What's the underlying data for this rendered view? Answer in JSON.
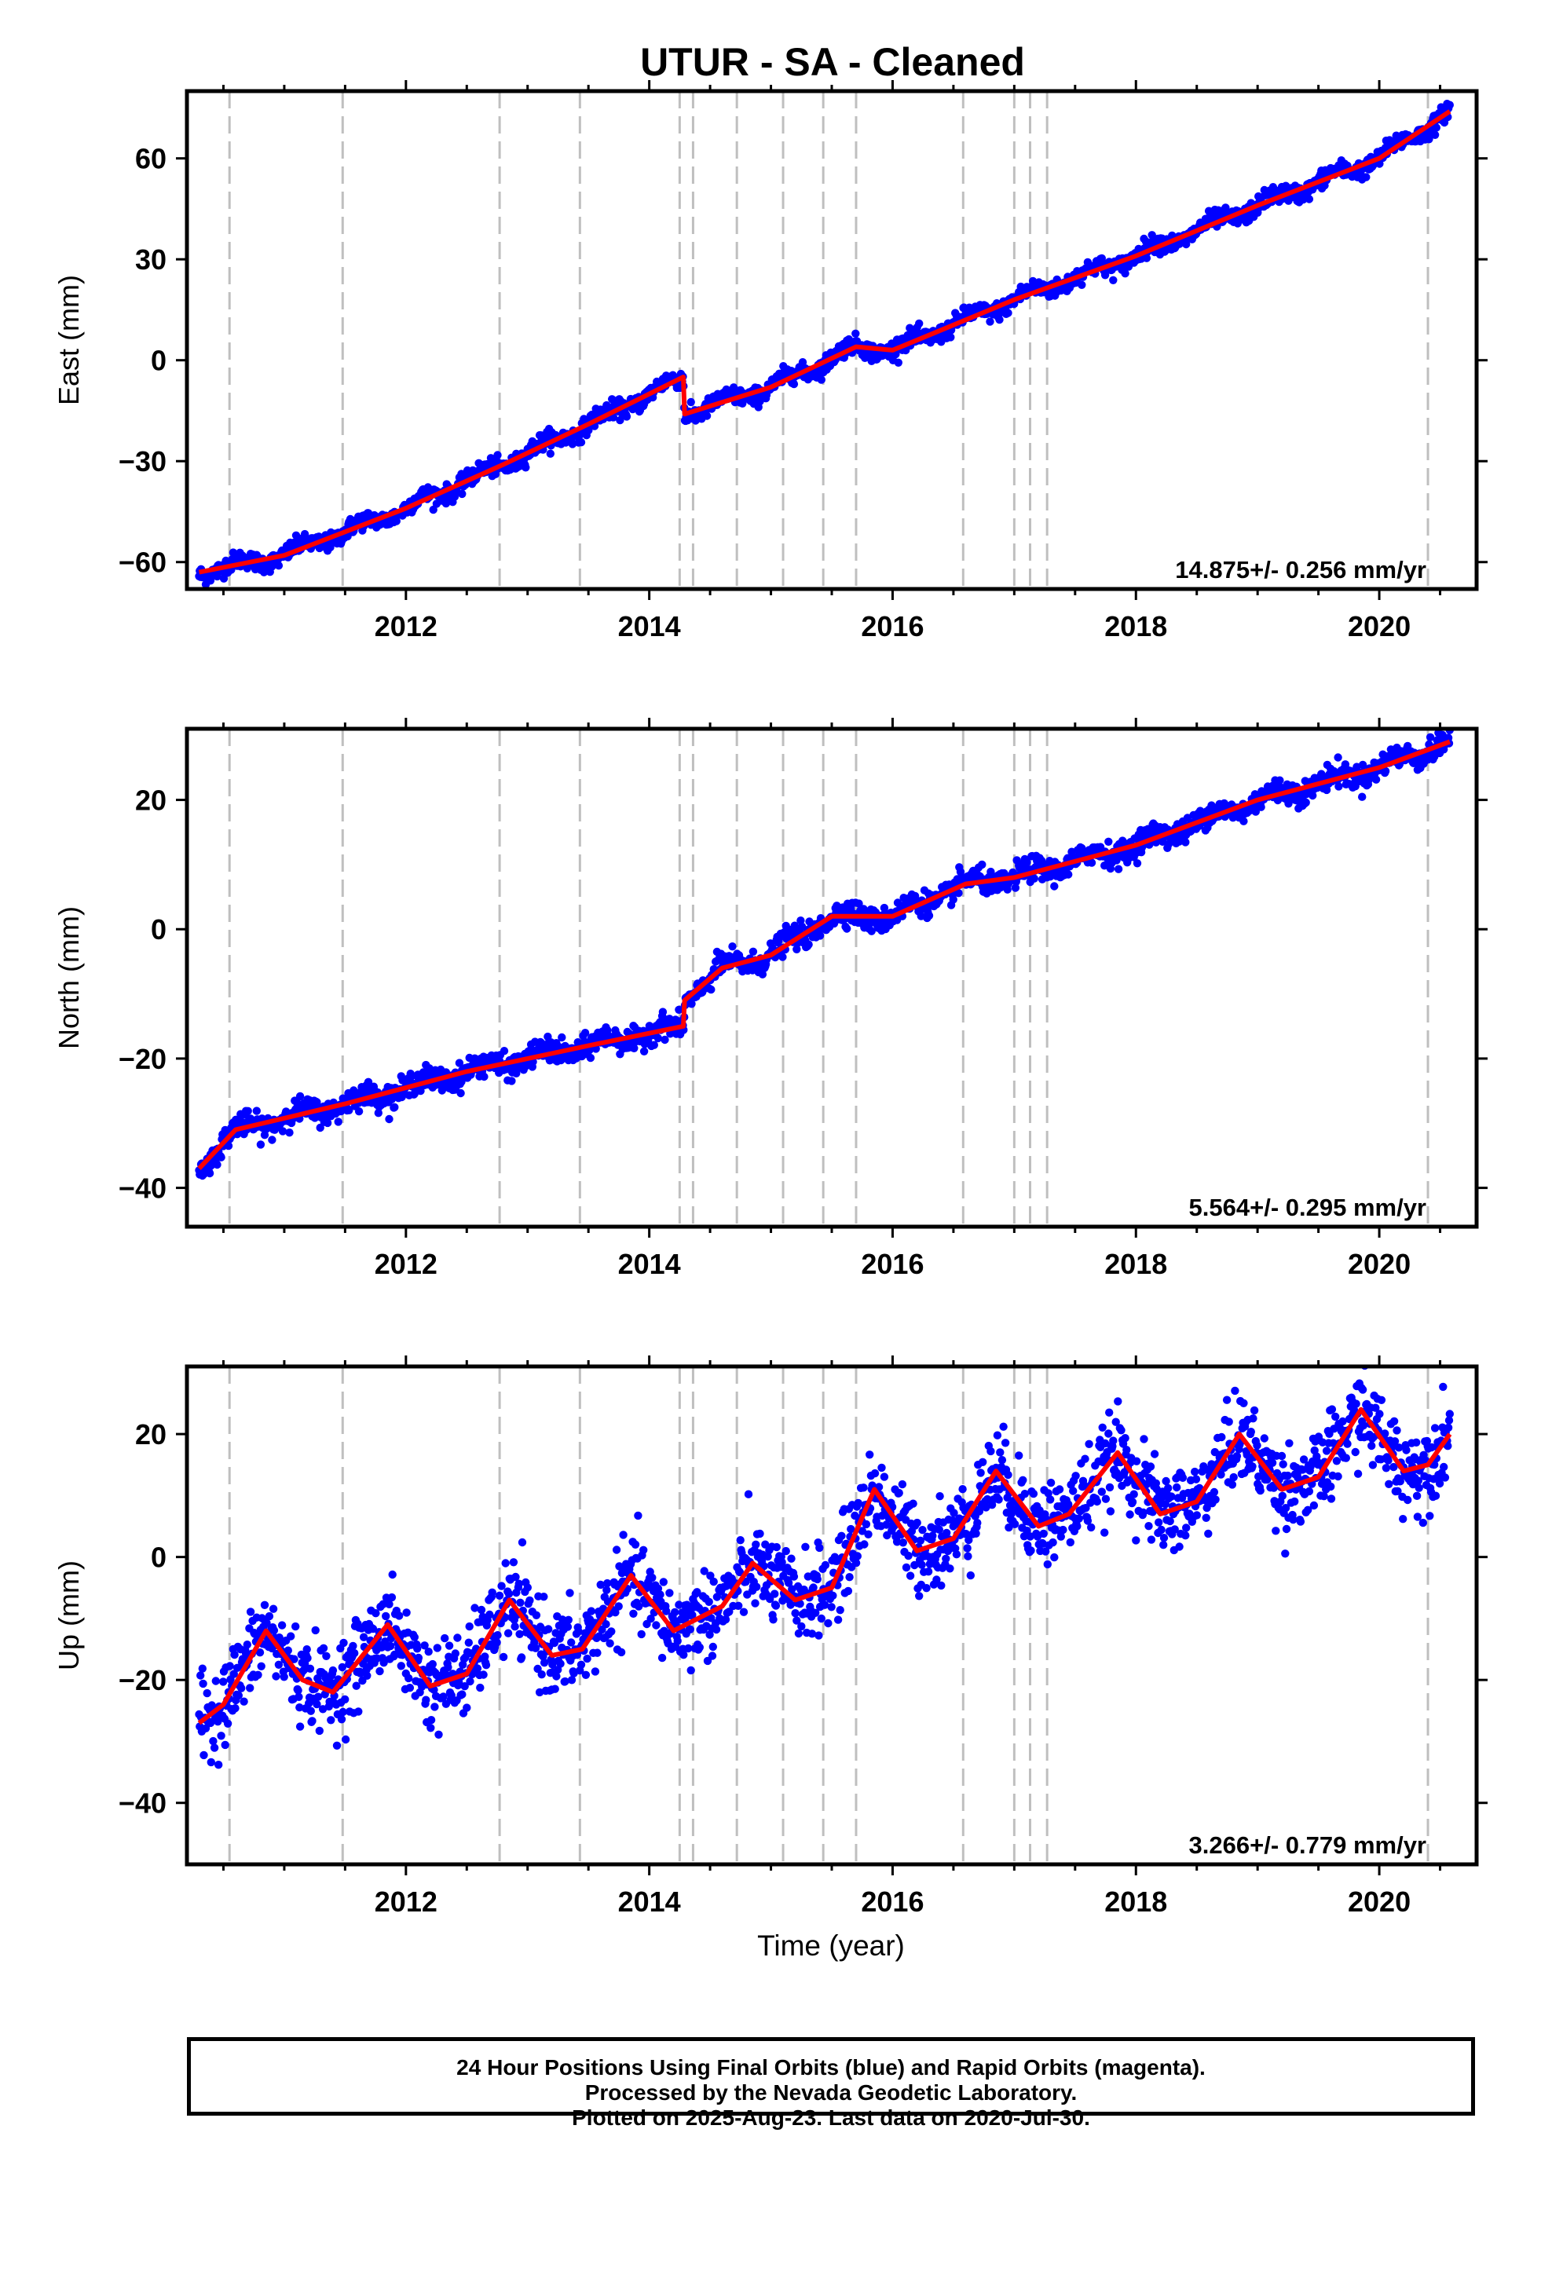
{
  "chart_data": {
    "title": "UTUR  - SA - Cleaned",
    "xlabel": "Time (year)",
    "x_ticks": [
      "2012",
      "2014",
      "2016",
      "2018",
      "2020"
    ],
    "xlim": [
      2010.2,
      2020.8
    ],
    "discontinuity_lines": [
      2010.55,
      2011.48,
      2012.77,
      2013.43,
      2014.25,
      2014.36,
      2014.72,
      2015.1,
      2015.43,
      2015.7,
      2016.58,
      2017.0,
      2017.13,
      2017.27,
      2020.4
    ],
    "colors": {
      "points": "#0000ff",
      "model": "#ff0000",
      "discontinuity": "#bfbfbf",
      "frame": "#000000"
    },
    "panels": [
      {
        "type": "scatter",
        "ylabel": "East (mm)",
        "ylim": [
          -68,
          80
        ],
        "yticks": [
          -60,
          -30,
          0,
          30,
          60
        ],
        "velocity_label": "14.875+/- 0.256 mm/yr",
        "noise_mm": 1.3,
        "seasonal_mm": 1.4,
        "model": [
          [
            2010.3,
            -63
          ],
          [
            2011.0,
            -58
          ],
          [
            2012.0,
            -44
          ],
          [
            2012.8,
            -31
          ],
          [
            2013.5,
            -19
          ],
          [
            2014.28,
            -5
          ],
          [
            2014.29,
            -16
          ],
          [
            2015.0,
            -8
          ],
          [
            2015.7,
            4
          ],
          [
            2016.0,
            3
          ],
          [
            2017.0,
            18
          ],
          [
            2018.0,
            31
          ],
          [
            2019.0,
            46
          ],
          [
            2020.0,
            60
          ],
          [
            2020.58,
            74
          ]
        ]
      },
      {
        "type": "scatter",
        "ylabel": "North (mm)",
        "ylim": [
          -46,
          31
        ],
        "yticks": [
          -40,
          -20,
          0,
          20
        ],
        "velocity_label": "5.564+/- 0.295 mm/yr",
        "noise_mm": 0.9,
        "seasonal_mm": 0.8,
        "model": [
          [
            2010.3,
            -37
          ],
          [
            2010.6,
            -31
          ],
          [
            2011.5,
            -27
          ],
          [
            2012.5,
            -22
          ],
          [
            2013.5,
            -18
          ],
          [
            2014.28,
            -15
          ],
          [
            2014.29,
            -11
          ],
          [
            2014.6,
            -6
          ],
          [
            2015.0,
            -4
          ],
          [
            2015.5,
            2
          ],
          [
            2016.0,
            2
          ],
          [
            2016.6,
            7
          ],
          [
            2017.0,
            8
          ],
          [
            2018.0,
            13
          ],
          [
            2019.0,
            20
          ],
          [
            2020.0,
            25
          ],
          [
            2020.58,
            29
          ]
        ]
      },
      {
        "type": "scatter",
        "ylabel": "Up (mm)",
        "ylim": [
          -50,
          31
        ],
        "yticks": [
          -40,
          -20,
          0,
          20
        ],
        "velocity_label": "3.266+/- 0.779 mm/yr",
        "noise_mm": 3.4,
        "seasonal_mm": 0,
        "model": [
          [
            2010.3,
            -27
          ],
          [
            2010.5,
            -24
          ],
          [
            2010.85,
            -12
          ],
          [
            2011.15,
            -20
          ],
          [
            2011.4,
            -22
          ],
          [
            2011.85,
            -11
          ],
          [
            2012.2,
            -21
          ],
          [
            2012.5,
            -19
          ],
          [
            2012.85,
            -7
          ],
          [
            2013.2,
            -16
          ],
          [
            2013.45,
            -15
          ],
          [
            2013.85,
            -3
          ],
          [
            2014.2,
            -12
          ],
          [
            2014.6,
            -8
          ],
          [
            2014.85,
            -1
          ],
          [
            2015.2,
            -7
          ],
          [
            2015.5,
            -5
          ],
          [
            2015.85,
            11
          ],
          [
            2016.2,
            1
          ],
          [
            2016.5,
            3
          ],
          [
            2016.85,
            14
          ],
          [
            2017.2,
            5
          ],
          [
            2017.45,
            7
          ],
          [
            2017.85,
            17
          ],
          [
            2018.2,
            7
          ],
          [
            2018.5,
            9
          ],
          [
            2018.85,
            20
          ],
          [
            2019.2,
            11
          ],
          [
            2019.5,
            13
          ],
          [
            2019.85,
            24
          ],
          [
            2020.2,
            14
          ],
          [
            2020.4,
            15
          ],
          [
            2020.58,
            20
          ]
        ]
      }
    ]
  },
  "caption": {
    "line1": "24 Hour Positions Using Final Orbits (blue) and Rapid Orbits (magenta).",
    "line2": "Processed by the Nevada Geodetic Laboratory.",
    "line3": "Plotted on 2025-Aug-23. Last data on 2020-Jul-30."
  }
}
